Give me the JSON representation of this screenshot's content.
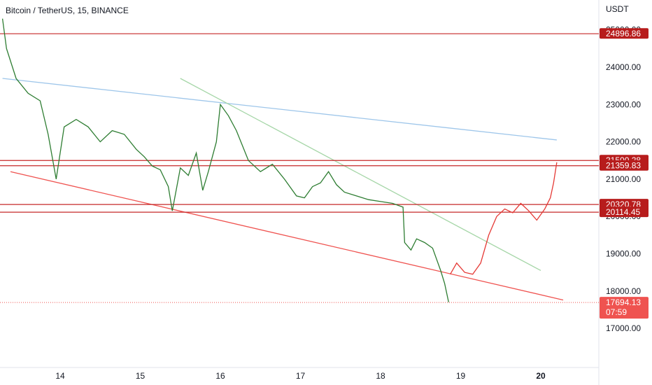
{
  "header": {
    "symbol_title": "Bitcoin / TetherUS, 15, BINANCE",
    "currency": "USDT"
  },
  "chart_data": {
    "type": "line",
    "title": "Bitcoin / TetherUS, 15, BINANCE",
    "ylabel": "USDT",
    "ylim": [
      16200,
      25400
    ],
    "x_ticks": [
      {
        "label": "14",
        "value": 14
      },
      {
        "label": "15",
        "value": 15
      },
      {
        "label": "16",
        "value": 16
      },
      {
        "label": "17",
        "value": 17
      },
      {
        "label": "18",
        "value": 18
      },
      {
        "label": "19",
        "value": 19
      },
      {
        "label": "20",
        "value": 20
      }
    ],
    "y_ticks": [
      {
        "label": "25000.00",
        "value": 25000
      },
      {
        "label": "24000.00",
        "value": 24000
      },
      {
        "label": "23000.00",
        "value": 23000
      },
      {
        "label": "22000.00",
        "value": 22000
      },
      {
        "label": "21000.00",
        "value": 21000
      },
      {
        "label": "20000.00",
        "value": 20000
      },
      {
        "label": "19000.00",
        "value": 19000
      },
      {
        "label": "18000.00",
        "value": 18000
      },
      {
        "label": "17000.00",
        "value": 17000
      }
    ],
    "horizontal_levels": [
      {
        "label": "24896.86",
        "value": 24896.86
      },
      {
        "label": "21500.28",
        "value": 21500.28
      },
      {
        "label": "21359.83",
        "value": 21359.83
      },
      {
        "label": "20320.78",
        "value": 20320.78
      },
      {
        "label": "20114.45",
        "value": 20114.45
      }
    ],
    "last_price": {
      "label": "17694.13",
      "value": 17694.13,
      "countdown": "07:59"
    },
    "price_series": {
      "x": [
        13.28,
        13.33,
        13.45,
        13.6,
        13.75,
        13.85,
        13.95,
        14.05,
        14.2,
        14.35,
        14.5,
        14.65,
        14.8,
        14.95,
        15.05,
        15.15,
        15.25,
        15.35,
        15.4,
        15.5,
        15.6,
        15.7,
        15.78,
        15.85,
        15.95,
        16.0,
        16.1,
        16.2,
        16.35,
        16.5,
        16.65,
        16.8,
        16.95,
        17.05,
        17.15,
        17.25,
        17.35,
        17.45,
        17.55,
        17.7,
        17.85,
        18.0,
        18.15,
        18.28,
        18.3,
        18.38,
        18.45,
        18.55,
        18.65,
        18.75,
        18.8,
        18.85
      ],
      "values": [
        25300,
        24500,
        23700,
        23300,
        23100,
        22200,
        21000,
        22400,
        22600,
        22400,
        22000,
        22300,
        22200,
        21800,
        21600,
        21350,
        21250,
        20800,
        20150,
        21300,
        21100,
        21700,
        20700,
        21200,
        22000,
        23000,
        22700,
        22300,
        21500,
        21200,
        21400,
        21000,
        20550,
        20500,
        20800,
        20900,
        21200,
        20850,
        20650,
        20550,
        20450,
        20400,
        20350,
        20250,
        19300,
        19100,
        19400,
        19300,
        19150,
        18550,
        18200,
        17700
      ]
    },
    "projection_series": {
      "x": [
        18.87,
        18.95,
        19.05,
        19.15,
        19.25,
        19.35,
        19.45,
        19.55,
        19.65,
        19.75,
        19.85,
        19.95,
        20.05,
        20.12,
        20.16,
        20.2
      ],
      "values": [
        18450,
        18750,
        18500,
        18450,
        18750,
        19500,
        20000,
        20200,
        20100,
        20350,
        20150,
        19900,
        20200,
        20500,
        20900,
        21450
      ]
    },
    "trendlines": [
      {
        "color": "#9ec6ea",
        "x": [
          13.28,
          20.2
        ],
        "values": [
          23700,
          22050
        ]
      },
      {
        "color": "#a5d6a7",
        "x": [
          15.5,
          20.0
        ],
        "values": [
          23700,
          18550
        ]
      },
      {
        "color": "#ef5350",
        "x": [
          13.38,
          20.28
        ],
        "values": [
          21200,
          17760
        ]
      }
    ],
    "colors": {
      "level_line": "#c62828",
      "level_badge": "#b71c1c",
      "last_price_badge": "#ef5350",
      "price_line": "#2e7d32",
      "projection_line": "#e53935"
    }
  }
}
